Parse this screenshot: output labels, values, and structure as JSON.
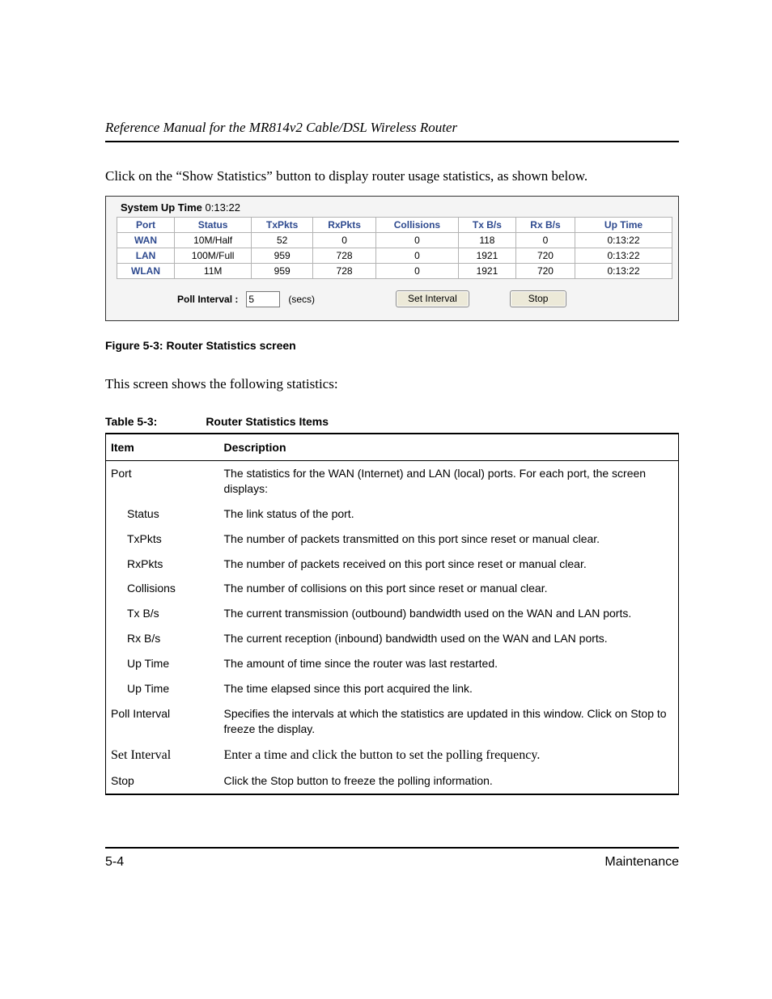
{
  "header": {
    "title": "Reference Manual for the MR814v2 Cable/DSL Wireless Router"
  },
  "intro": "Click on the “Show Statistics” button to display router usage statistics, as shown below.",
  "router": {
    "uptime_label": "System Up Time",
    "uptime_value": "0:13:22",
    "columns": [
      "Port",
      "Status",
      "TxPkts",
      "RxPkts",
      "Collisions",
      "Tx B/s",
      "Rx B/s",
      "Up Time"
    ],
    "rows": [
      {
        "port": "WAN",
        "status": "10M/Half",
        "tx": "52",
        "rx": "0",
        "col": "0",
        "txbs": "118",
        "rxbs": "0",
        "up": "0:13:22"
      },
      {
        "port": "LAN",
        "status": "100M/Full",
        "tx": "959",
        "rx": "728",
        "col": "0",
        "txbs": "1921",
        "rxbs": "720",
        "up": "0:13:22"
      },
      {
        "port": "WLAN",
        "status": "11M",
        "tx": "959",
        "rx": "728",
        "col": "0",
        "txbs": "1921",
        "rxbs": "720",
        "up": "0:13:22"
      }
    ],
    "poll_label": "Poll Interval :",
    "poll_value": "5",
    "secs_label": "(secs)",
    "set_interval_btn": "Set Interval",
    "stop_btn": "Stop"
  },
  "figure_caption": "Figure 5-3:  Router Statistics screen",
  "para": "This screen shows the following statistics:",
  "table_caption_a": "Table 5-3:",
  "table_caption_b": "Router Statistics Items",
  "desc_table": {
    "headers": [
      "Item",
      "Description"
    ],
    "rows": [
      {
        "item": "Port",
        "desc": "The statistics for the WAN (Internet) and LAN (local) ports. For each port, the screen displays:",
        "indent": 0
      },
      {
        "item": "Status",
        "desc": "The link status of the port.",
        "indent": 1
      },
      {
        "item": "TxPkts",
        "desc": "The number of packets transmitted on this port since reset or manual clear.",
        "indent": 1
      },
      {
        "item": "RxPkts",
        "desc": "The number of packets received on this port since reset or manual clear.",
        "indent": 1
      },
      {
        "item": "Collisions",
        "desc": "The number of collisions on this port since reset or manual clear.",
        "indent": 1
      },
      {
        "item": "Tx B/s",
        "desc": "The current transmission (outbound) bandwidth used on the WAN and LAN ports.",
        "indent": 1
      },
      {
        "item": "Rx B/s",
        "desc": "The current reception (inbound) bandwidth used on the WAN and LAN ports.",
        "indent": 1
      },
      {
        "item": "Up Time",
        "desc": "The amount of time since the router was last restarted.",
        "indent": 1
      },
      {
        "item": "Up Time",
        "desc": "The time elapsed since this port acquired the link.",
        "indent": 1
      },
      {
        "item": "Poll Interval",
        "desc": "Specifies the intervals at which the statistics are updated in this window. Click on Stop to freeze the display.",
        "indent": 0
      },
      {
        "item": "Set Interval",
        "desc": "Enter a time and click the button to set the polling frequency.",
        "indent": 0,
        "serif": true
      },
      {
        "item": "Stop",
        "desc": "Click the Stop button to freeze the polling information.",
        "indent": 0,
        "last": true
      }
    ]
  },
  "footer": {
    "page_num": "5-4",
    "section": "Maintenance"
  },
  "colors": {
    "header_blue": "#2e4a8f",
    "border_gray": "#b3b3b3",
    "panel_bg": "#f4f4f4",
    "btn_bg": "#ece9d8"
  }
}
